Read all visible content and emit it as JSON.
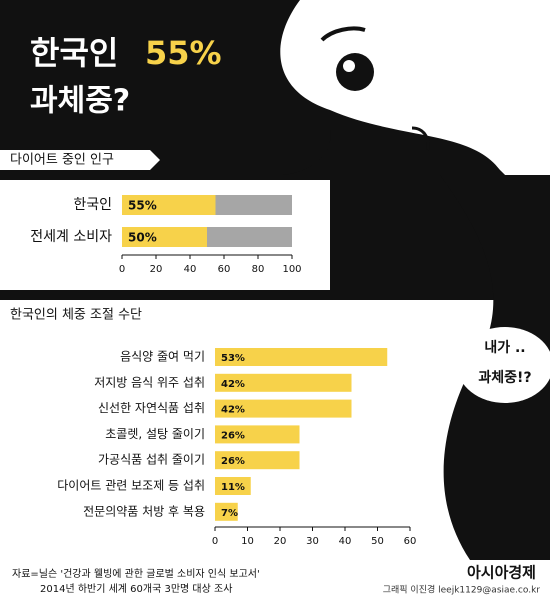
{
  "title": "한국인",
  "title_highlight": "55%",
  "subtitle": "과체중?",
  "speech": [
    "내가 ..",
    "과체중!?"
  ],
  "chart_data": [
    {
      "type": "bar",
      "title": "다이어트 중인 인구",
      "categories": [
        "한국인",
        "전세계 소비자"
      ],
      "values": [
        55,
        50
      ],
      "value_labels": [
        "55%",
        "50%"
      ],
      "color": "#f7d24a",
      "track_color": "#a6a6a6",
      "xlim": [
        0,
        100
      ],
      "xticks": [
        0,
        20,
        40,
        60,
        80,
        100
      ]
    },
    {
      "type": "bar",
      "title": "한국인의 체중 조절 수단",
      "categories": [
        "음식양 줄여 먹기",
        "저지방 음식 위주 섭취",
        "신선한 자연식품 섭취",
        "초콜렛, 설탕 줄이기",
        "가공식품 섭취 줄이기",
        "다이어트 관련 보조제 등 섭취",
        "전문의약품 처방 후 복용"
      ],
      "values": [
        53,
        42,
        42,
        26,
        26,
        11,
        7
      ],
      "value_labels": [
        "53%",
        "42%",
        "42%",
        "26%",
        "26%",
        "11%",
        "7%"
      ],
      "color": "#f7d24a",
      "xlim": [
        0,
        60
      ],
      "xticks": [
        0,
        10,
        20,
        30,
        40,
        50,
        60
      ]
    }
  ],
  "source": [
    "자료=닐슨 '건강과 웰빙에 관한 글로벌 소비자 인식 보고서'",
    "2014년 하반기 세계 60개국 3만명 대상 조사"
  ],
  "brand": "아시아경제",
  "credit": "그래픽 이진경 leejk1129@asiae.co.kr"
}
